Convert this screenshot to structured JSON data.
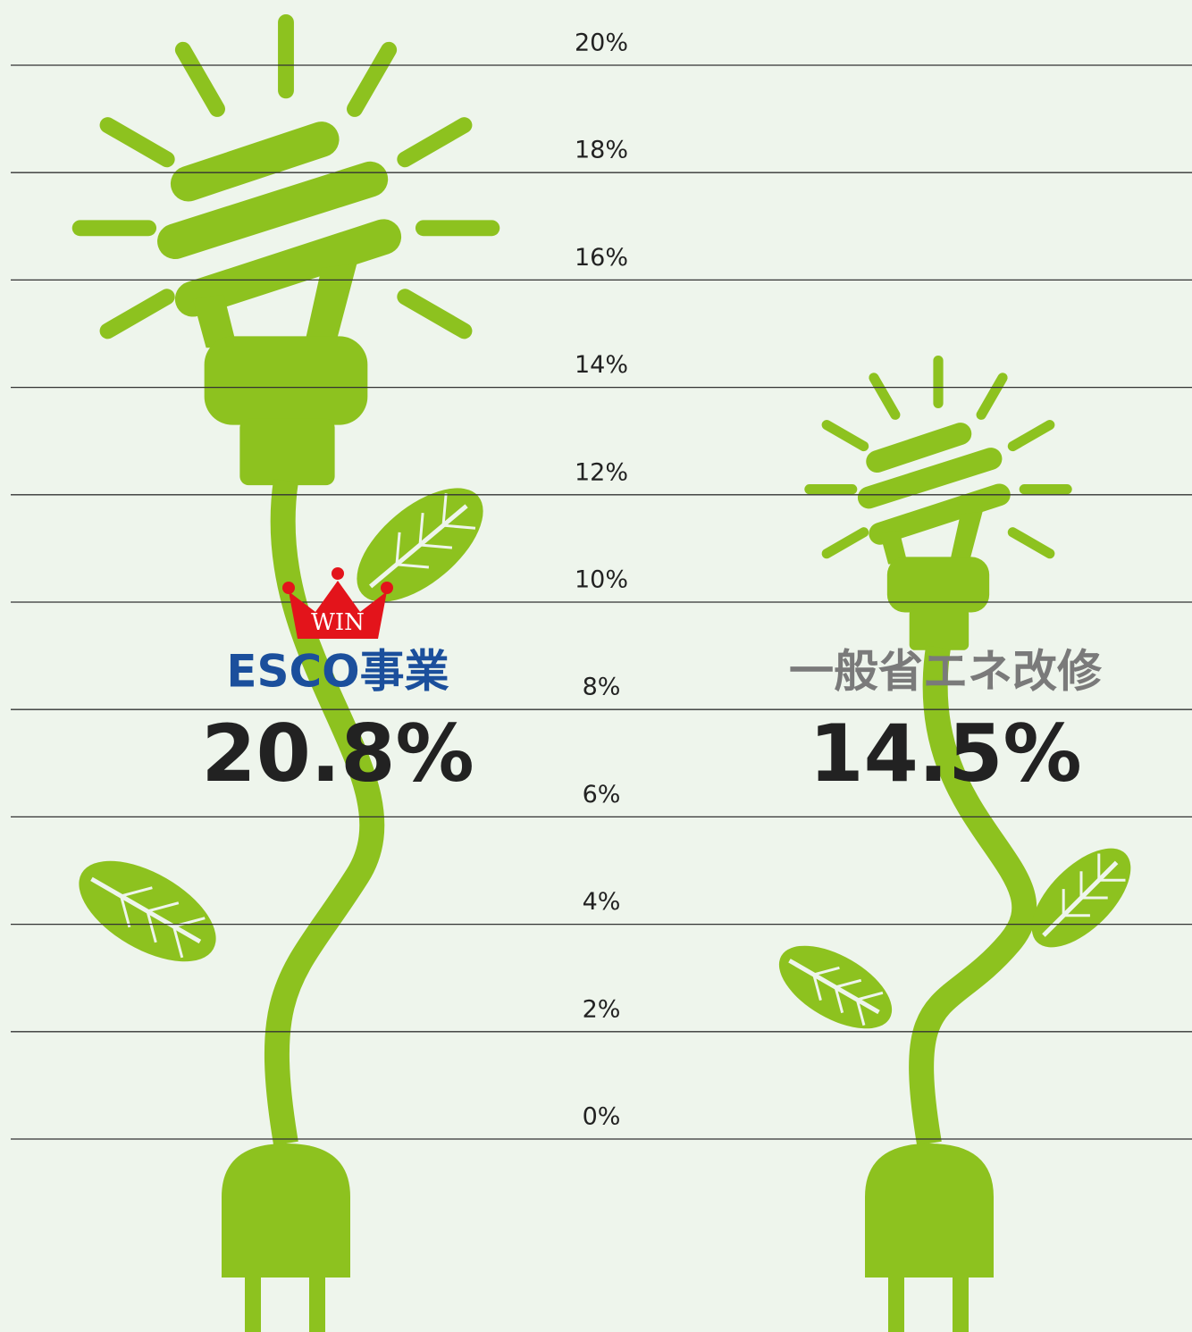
{
  "chart_data": {
    "type": "plant",
    "categories": [
      "ESCO事業",
      "一般省エネ改修"
    ],
    "values": [
      20.8,
      14.5
    ],
    "value_labels": [
      "20.8%",
      "14.5%"
    ],
    "label_colors": [
      "#1b4f9c",
      "#7a7a7a"
    ],
    "color": "#8dc21f",
    "annotation": "WIN",
    "ylim": [
      0,
      20
    ],
    "yticks": [
      {
        "value": 0,
        "label": "0%"
      },
      {
        "value": 2,
        "label": "2%"
      },
      {
        "value": 4,
        "label": "4%"
      },
      {
        "value": 6,
        "label": "6%"
      },
      {
        "value": 8,
        "label": "8%"
      },
      {
        "value": 10,
        "label": "10%"
      },
      {
        "value": 12,
        "label": "12%"
      },
      {
        "value": 14,
        "label": "14%"
      },
      {
        "value": 16,
        "label": "16%"
      },
      {
        "value": 18,
        "label": "18%"
      },
      {
        "value": 20,
        "label": "20%"
      }
    ],
    "grid": true
  }
}
